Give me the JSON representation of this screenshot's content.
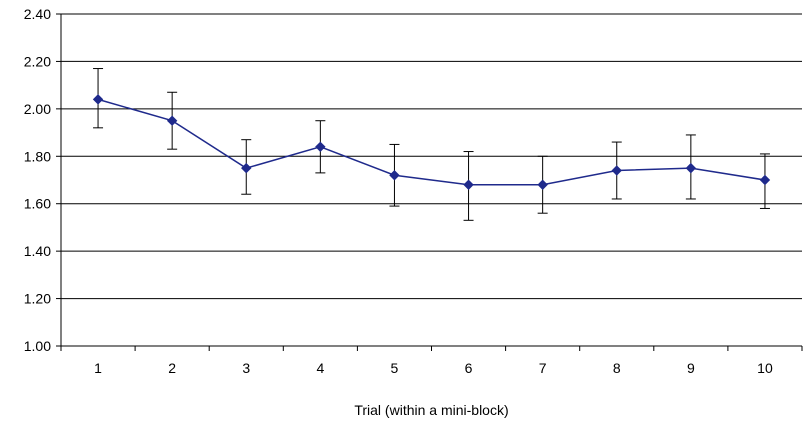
{
  "chart_data": {
    "type": "line",
    "title": "",
    "xlabel": "Trial (within a mini-block)",
    "ylabel": "",
    "categories": [
      "1",
      "2",
      "3",
      "4",
      "5",
      "6",
      "7",
      "8",
      "9",
      "10"
    ],
    "series": [
      {
        "values": [
          2.04,
          1.95,
          1.75,
          1.84,
          1.72,
          1.68,
          1.68,
          1.74,
          1.75,
          1.7
        ],
        "error_upper": [
          2.17,
          2.07,
          1.87,
          1.95,
          1.85,
          1.82,
          1.8,
          1.86,
          1.89,
          1.81
        ],
        "error_lower": [
          1.92,
          1.83,
          1.64,
          1.73,
          1.59,
          1.53,
          1.56,
          1.62,
          1.62,
          1.58
        ],
        "color": "#1f2a8c"
      }
    ],
    "ylim": [
      1.0,
      2.4
    ],
    "yticks": [
      "1.00",
      "1.20",
      "1.40",
      "1.60",
      "1.80",
      "2.00",
      "2.20",
      "2.40"
    ],
    "grid": true,
    "legend": "none",
    "gridline_color": "#000000",
    "errorbar_color": "#000000"
  }
}
